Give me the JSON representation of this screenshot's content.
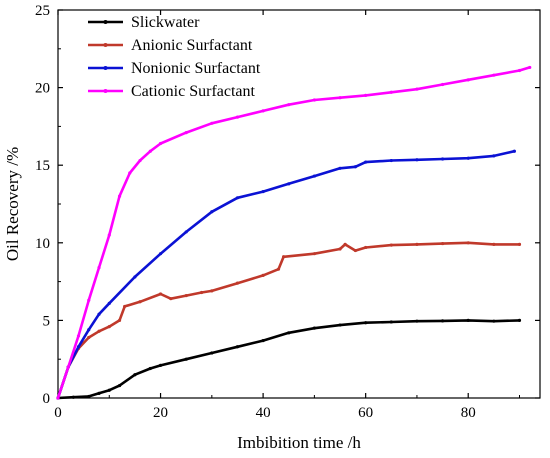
{
  "chart_data": {
    "type": "line",
    "title": "",
    "xlabel": "Imbibition time /h",
    "ylabel": "Oil Recovery /%",
    "xlim": [
      0,
      94
    ],
    "ylim": [
      0,
      25
    ],
    "xticks": [
      0,
      20,
      40,
      60,
      80
    ],
    "yticks": [
      0,
      5,
      10,
      15,
      20,
      25
    ],
    "grid": false,
    "legend_position": "top-left",
    "series": [
      {
        "name": "Slickwater",
        "color": "#000000",
        "x": [
          0,
          3,
          6,
          8,
          10,
          12,
          15,
          18,
          20,
          25,
          30,
          35,
          40,
          45,
          50,
          55,
          60,
          65,
          70,
          75,
          80,
          85,
          90
        ],
        "y": [
          0,
          0.05,
          0.1,
          0.3,
          0.5,
          0.8,
          1.5,
          1.9,
          2.1,
          2.5,
          2.9,
          3.3,
          3.7,
          4.2,
          4.5,
          4.7,
          4.85,
          4.9,
          4.95,
          4.97,
          5.0,
          4.95,
          5.0
        ]
      },
      {
        "name": "Anionic Surfactant",
        "color": "#c0392b",
        "x": [
          0,
          2,
          4,
          6,
          8,
          10,
          12,
          13,
          16,
          20,
          22,
          25,
          28,
          30,
          35,
          40,
          43,
          44,
          50,
          55,
          56,
          58,
          60,
          65,
          70,
          75,
          80,
          85,
          90
        ],
        "y": [
          0,
          2.0,
          3.2,
          3.9,
          4.3,
          4.6,
          5.0,
          5.9,
          6.2,
          6.7,
          6.4,
          6.6,
          6.8,
          6.9,
          7.4,
          7.9,
          8.3,
          9.1,
          9.3,
          9.6,
          9.9,
          9.5,
          9.7,
          9.85,
          9.9,
          9.95,
          10.0,
          9.9,
          9.9
        ]
      },
      {
        "name": "Nonionic Surfactant",
        "color": "#0b12d4",
        "x": [
          0,
          2,
          4,
          6,
          8,
          10,
          15,
          20,
          25,
          30,
          35,
          40,
          45,
          50,
          55,
          58,
          60,
          65,
          70,
          75,
          80,
          85,
          89
        ],
        "y": [
          0,
          2.0,
          3.3,
          4.4,
          5.4,
          6.1,
          7.8,
          9.3,
          10.7,
          12.0,
          12.9,
          13.3,
          13.8,
          14.3,
          14.8,
          14.9,
          15.2,
          15.3,
          15.35,
          15.4,
          15.45,
          15.6,
          15.9
        ]
      },
      {
        "name": "Cationic Surfactant",
        "color": "#ff00ff",
        "x": [
          0,
          2,
          4,
          6,
          8,
          10,
          12,
          14,
          16,
          18,
          20,
          25,
          30,
          35,
          40,
          45,
          50,
          55,
          60,
          65,
          70,
          75,
          80,
          85,
          90,
          92
        ],
        "y": [
          0,
          2.0,
          4.0,
          6.3,
          8.4,
          10.5,
          13.0,
          14.5,
          15.3,
          15.9,
          16.4,
          17.1,
          17.7,
          18.1,
          18.5,
          18.9,
          19.2,
          19.35,
          19.5,
          19.7,
          19.9,
          20.2,
          20.5,
          20.8,
          21.1,
          21.3
        ]
      }
    ]
  }
}
